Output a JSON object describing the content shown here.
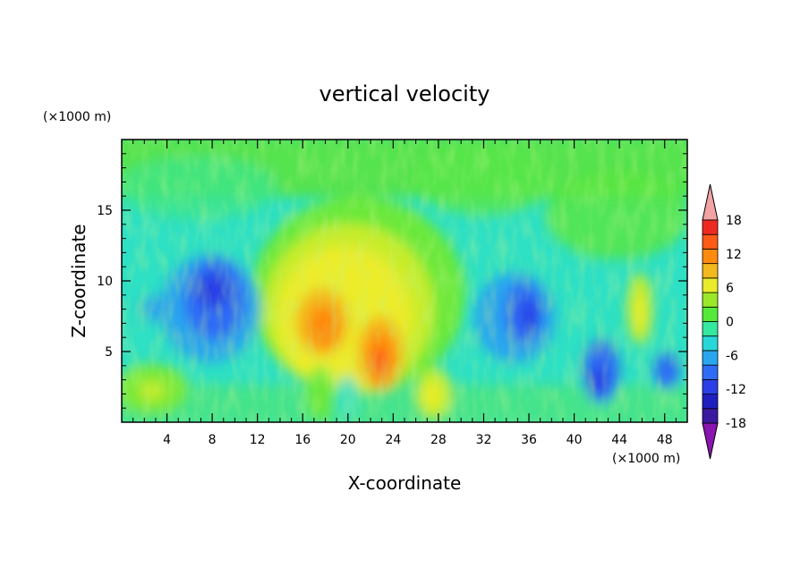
{
  "chart_data": {
    "type": "heatmap",
    "title": "vertical velocity",
    "xlabel": "X-coordinate",
    "ylabel": "Z-coordinate",
    "x_unit": "(×1000 m)",
    "y_unit": "(×1000 m)",
    "xlim": [
      0,
      50
    ],
    "ylim": [
      0,
      20
    ],
    "xticks": [
      4,
      8,
      12,
      16,
      20,
      24,
      28,
      32,
      36,
      40,
      44,
      48
    ],
    "yticks": [
      5,
      10,
      15
    ],
    "colorbar": {
      "levels": [
        -21,
        -18,
        -15,
        -12,
        -9,
        -6,
        -3,
        0,
        3,
        6,
        9,
        12,
        15,
        18,
        21
      ],
      "labels": [
        18,
        12,
        6,
        0,
        -6,
        -12,
        -18
      ],
      "colors": [
        "#8a15b0",
        "#3b1aa0",
        "#1f1fbf",
        "#2a40e6",
        "#2f6cf5",
        "#2aa6ee",
        "#28d8d8",
        "#34e8a0",
        "#55ea3a",
        "#9be82a",
        "#e8ec2a",
        "#f3b91c",
        "#ff8a10",
        "#ff5a18",
        "#ee2a20",
        "#f2a3a3"
      ],
      "extend": "both"
    },
    "features": [
      {
        "x": 18.0,
        "z": 7.0,
        "value": 12
      },
      {
        "x": 22.5,
        "z": 4.5,
        "value": 14
      },
      {
        "x": 27.0,
        "z": 1.9,
        "value": 6
      },
      {
        "x": 2.5,
        "z": 2.5,
        "value": 5
      },
      {
        "x": 8.5,
        "z": 9.0,
        "value": -12
      },
      {
        "x": 35.5,
        "z": 7.5,
        "value": -12
      },
      {
        "x": 42.0,
        "z": 3.5,
        "value": -12
      },
      {
        "x": 47.0,
        "z": 3.5,
        "value": -9
      },
      {
        "x": 45.5,
        "z": 9.0,
        "value": 5
      }
    ]
  }
}
